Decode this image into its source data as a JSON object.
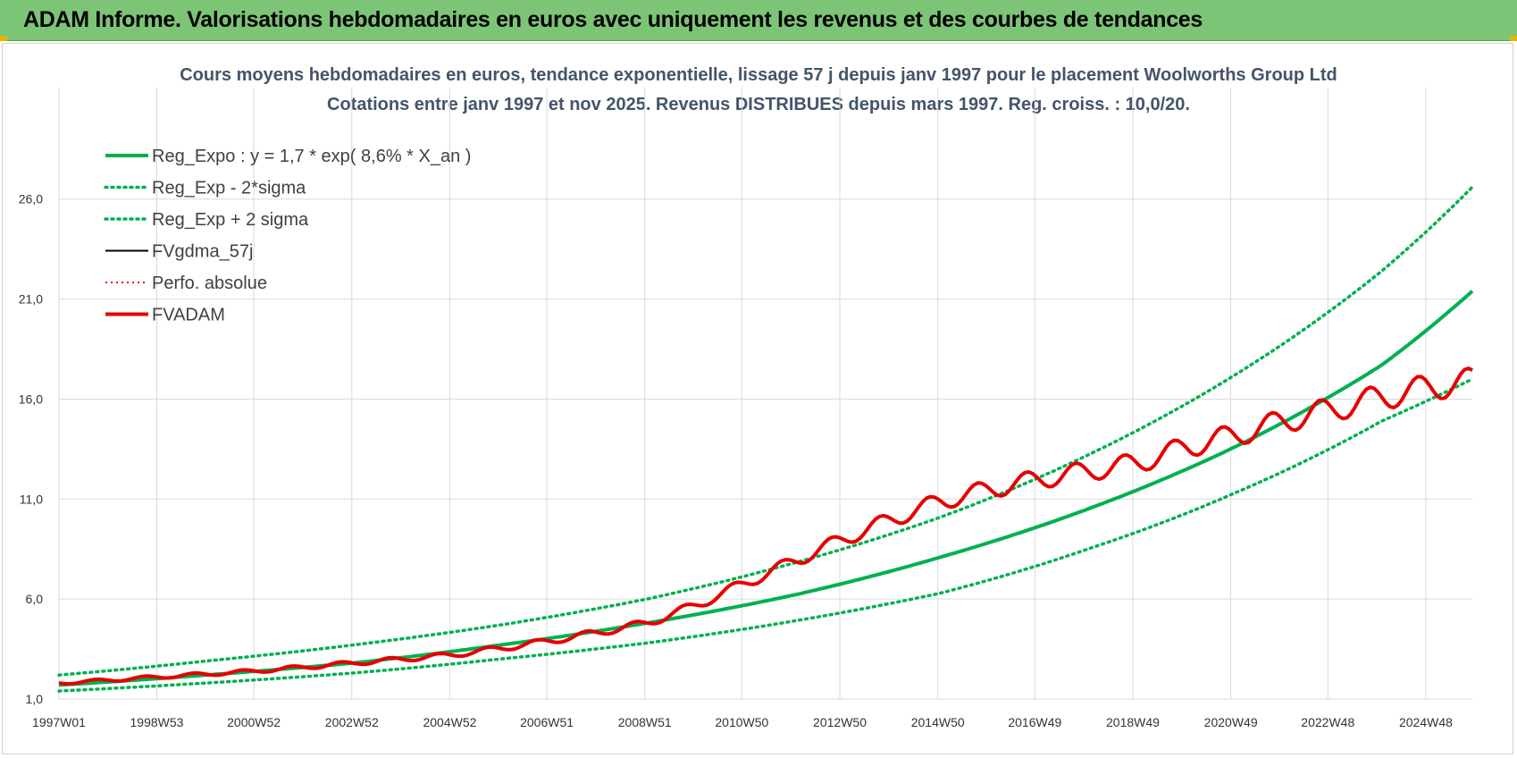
{
  "banner": {
    "title": "ADAM Informe. Valorisations hebdomadaires en euros avec uniquement les revenus et des courbes de tendances"
  },
  "chart_data": {
    "type": "line",
    "title": "Cours moyens hebdomadaires en euros, tendance exponentielle, lissage 57 j depuis janv 1997  pour le placement Woolworths Group Ltd",
    "subtitle": "Cotations entre janv 1997 et nov 2025. Revenus DISTRIBUES depuis mars 1997.  Reg. croiss. : 10,0/20.",
    "xlabel": "",
    "ylabel": "",
    "x_ticks": [
      "1997W01",
      "1998W53",
      "2000W52",
      "2002W52",
      "2004W52",
      "2006W51",
      "2008W51",
      "2010W50",
      "2012W50",
      "2014W50",
      "2016W49",
      "2018W49",
      "2020W49",
      "2022W48",
      "2024W48"
    ],
    "x_range_years": [
      1997.0,
      2025.85
    ],
    "y_ticks": [
      "1,0",
      "6,0",
      "11,0",
      "16,0",
      "21,0",
      "26,0"
    ],
    "ylim": [
      1.0,
      28.0
    ],
    "grid": true,
    "legend_position": "top-left",
    "colors": {
      "reg_expo": "#00b050",
      "perfo": "#e60000",
      "fvgdma": "#000000",
      "fvadam": "#e60000",
      "grid": "#d9d9d9"
    },
    "series": [
      {
        "name": "Reg_Expo : y = 1,7 * exp( 8,6% *  X_an )",
        "style": "solid-green-thick",
        "x": [
          1997,
          2000,
          2003,
          2006,
          2009,
          2012,
          2015,
          2018,
          2021,
          2024,
          2025.85
        ],
        "values": [
          1.7,
          2.2,
          2.8,
          3.7,
          4.8,
          6.2,
          8.1,
          10.5,
          13.6,
          17.7,
          21.4
        ]
      },
      {
        "name": "Reg_Exp - 2*sigma",
        "style": "dotted-green",
        "x": [
          1997,
          2000,
          2003,
          2006,
          2009,
          2012,
          2015,
          2018,
          2021,
          2024,
          2025.85
        ],
        "values": [
          1.4,
          1.8,
          2.3,
          3.0,
          3.8,
          4.9,
          6.3,
          8.5,
          11.3,
          14.9,
          17.0
        ]
      },
      {
        "name": "Reg_Exp + 2 sigma",
        "style": "dotted-green",
        "x": [
          1997,
          2000,
          2003,
          2006,
          2009,
          2012,
          2015,
          2018,
          2021,
          2024,
          2025.85
        ],
        "values": [
          2.2,
          2.9,
          3.7,
          4.7,
          6.0,
          7.8,
          10.1,
          13.2,
          17.2,
          22.4,
          26.6
        ]
      },
      {
        "name": "FVgdma_57j",
        "style": "solid-black",
        "x": [
          1997,
          1999,
          2001,
          2003,
          2005,
          2007,
          2009,
          2010,
          2011,
          2012,
          2013,
          2014,
          2015,
          2016,
          2017,
          2018,
          2019,
          2020,
          2021,
          2022,
          2023,
          2024,
          2025,
          2025.85
        ],
        "values": [
          1.8,
          2.1,
          2.4,
          2.8,
          3.2,
          3.9,
          4.8,
          5.7,
          6.8,
          7.9,
          9.0,
          10.0,
          10.9,
          11.5,
          12.0,
          12.4,
          12.8,
          13.6,
          14.2,
          14.9,
          15.5,
          16.1,
          16.6,
          16.9
        ]
      },
      {
        "name": "Perfo. absolue",
        "style": "dotted-red",
        "x": [
          1997,
          1999,
          2001,
          2003,
          2005,
          2007,
          2009,
          2010,
          2011,
          2012,
          2013,
          2014,
          2015,
          2016,
          2017,
          2018,
          2019,
          2020,
          2021,
          2022,
          2023,
          2024,
          2025,
          2025.85
        ],
        "values": [
          1.8,
          2.1,
          2.4,
          2.8,
          3.2,
          3.9,
          4.8,
          5.7,
          6.8,
          7.9,
          9.0,
          10.0,
          10.9,
          11.5,
          12.0,
          12.4,
          12.8,
          13.6,
          14.2,
          14.9,
          15.5,
          16.1,
          16.6,
          16.9
        ]
      },
      {
        "name": "FVADAM",
        "style": "solid-red-thick",
        "x": [
          1997,
          1999,
          2001,
          2003,
          2005,
          2007,
          2009,
          2010,
          2011,
          2012,
          2013,
          2014,
          2015,
          2016,
          2017,
          2018,
          2019,
          2020,
          2021,
          2022,
          2023,
          2024,
          2025,
          2025.85
        ],
        "values": [
          1.8,
          2.1,
          2.4,
          2.8,
          3.2,
          3.9,
          4.8,
          5.7,
          6.8,
          7.9,
          9.0,
          10.0,
          10.9,
          11.5,
          12.0,
          12.4,
          12.8,
          13.6,
          14.2,
          14.9,
          15.5,
          16.1,
          16.6,
          16.9
        ]
      }
    ]
  }
}
